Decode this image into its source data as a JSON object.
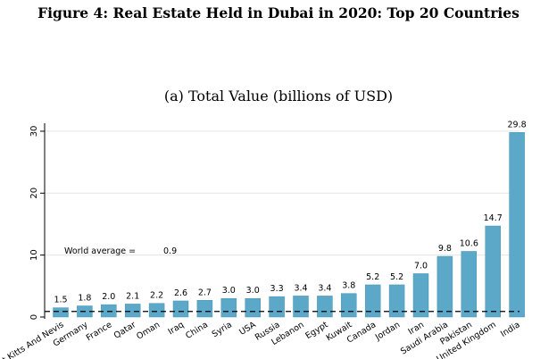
{
  "figure": {
    "title": "Figure 4: Real Estate Held in Dubai in 2020: Top 20 Countries"
  },
  "chart_data": {
    "type": "bar",
    "title": "(a) Total Value (billions of USD)",
    "xlabel": "",
    "ylabel": "",
    "ylim": [
      0,
      31
    ],
    "yticks": [
      0,
      10,
      20,
      30
    ],
    "grid": true,
    "bar_color": "#5BA8C8",
    "categories": [
      "Saint Kitts And Nevis",
      "Germany",
      "France",
      "Qatar",
      "Oman",
      "Iraq",
      "China",
      "Syria",
      "USA",
      "Russia",
      "Lebanon",
      "Egypt",
      "Kuwait",
      "Canada",
      "Jordan",
      "Iran",
      "Saudi Arabia",
      "Pakistan",
      "United Kingdom",
      "India"
    ],
    "values": [
      1.5,
      1.8,
      2.0,
      2.1,
      2.2,
      2.6,
      2.7,
      3.0,
      3.0,
      3.3,
      3.4,
      3.4,
      3.8,
      5.2,
      5.2,
      7.0,
      9.8,
      10.6,
      14.7,
      29.8
    ],
    "value_labels": [
      "1.5",
      "1.8",
      "2.0",
      "2.1",
      "2.2",
      "2.6",
      "2.7",
      "3.0",
      "3.0",
      "3.3",
      "3.4",
      "3.4",
      "3.8",
      "5.2",
      "5.2",
      "7.0",
      "9.8",
      "10.6",
      "14.7",
      "29.8"
    ],
    "reference_line": {
      "label": "World average =",
      "value": 0.9,
      "value_label": "0.9",
      "style": "dashed"
    }
  }
}
